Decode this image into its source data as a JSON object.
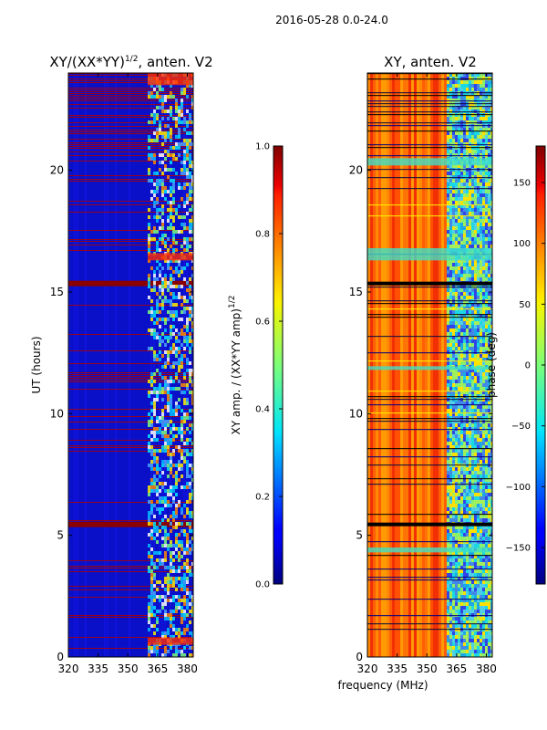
{
  "figure_title": "2016-05-28 0.0-24.0",
  "shared_xlabel": "frequency (MHz)",
  "chart_data": [
    {
      "type": "heatmap",
      "title_main": "XY/(XX*YY)",
      "title_sup": "1/2",
      "title_suffix": ", anten. V2",
      "xlabel": "",
      "ylabel": "UT (hours)",
      "xlim": [
        320,
        383
      ],
      "ylim": [
        0,
        24
      ],
      "xticks": [
        320,
        335,
        350,
        365,
        380
      ],
      "xtick_labels": [
        "320",
        "335",
        "350",
        "365",
        "380"
      ],
      "yticks": [
        0,
        5,
        10,
        15,
        20
      ],
      "ytick_labels": [
        "0",
        "5",
        "10",
        "15",
        "20"
      ],
      "band_start_mhz": 360,
      "colorbar": {
        "label_main": "XY amp. / (XX*YY amp)",
        "label_sup": "1/2",
        "range": [
          0.0,
          1.0
        ],
        "ticks": [
          0.0,
          0.2,
          0.4,
          0.6,
          0.8,
          1.0
        ],
        "tick_labels": [
          "0.0",
          "0.2",
          "0.4",
          "0.6",
          "0.8",
          "1.0"
        ]
      },
      "colormap": "jet"
    },
    {
      "type": "heatmap",
      "title_main": "XY, anten. V2",
      "xlabel": "frequency (MHz)",
      "ylabel": "",
      "xlim": [
        320,
        383
      ],
      "ylim": [
        0,
        24
      ],
      "xticks": [
        320,
        335,
        350,
        365,
        380
      ],
      "xtick_labels": [
        "320",
        "335",
        "350",
        "365",
        "380"
      ],
      "yticks": [
        0,
        5,
        10,
        15,
        20
      ],
      "ytick_labels": [
        "0",
        "5",
        "10",
        "15",
        "20"
      ],
      "band_start_mhz": 360,
      "colorbar": {
        "label_main": "phase (deg)",
        "range": [
          -180,
          180
        ],
        "ticks": [
          -150,
          -100,
          -50,
          0,
          50,
          100,
          150
        ],
        "tick_labels": [
          "−150",
          "−100",
          "−50",
          "0",
          "50",
          "100",
          "150"
        ]
      },
      "colormap": "jet"
    }
  ]
}
